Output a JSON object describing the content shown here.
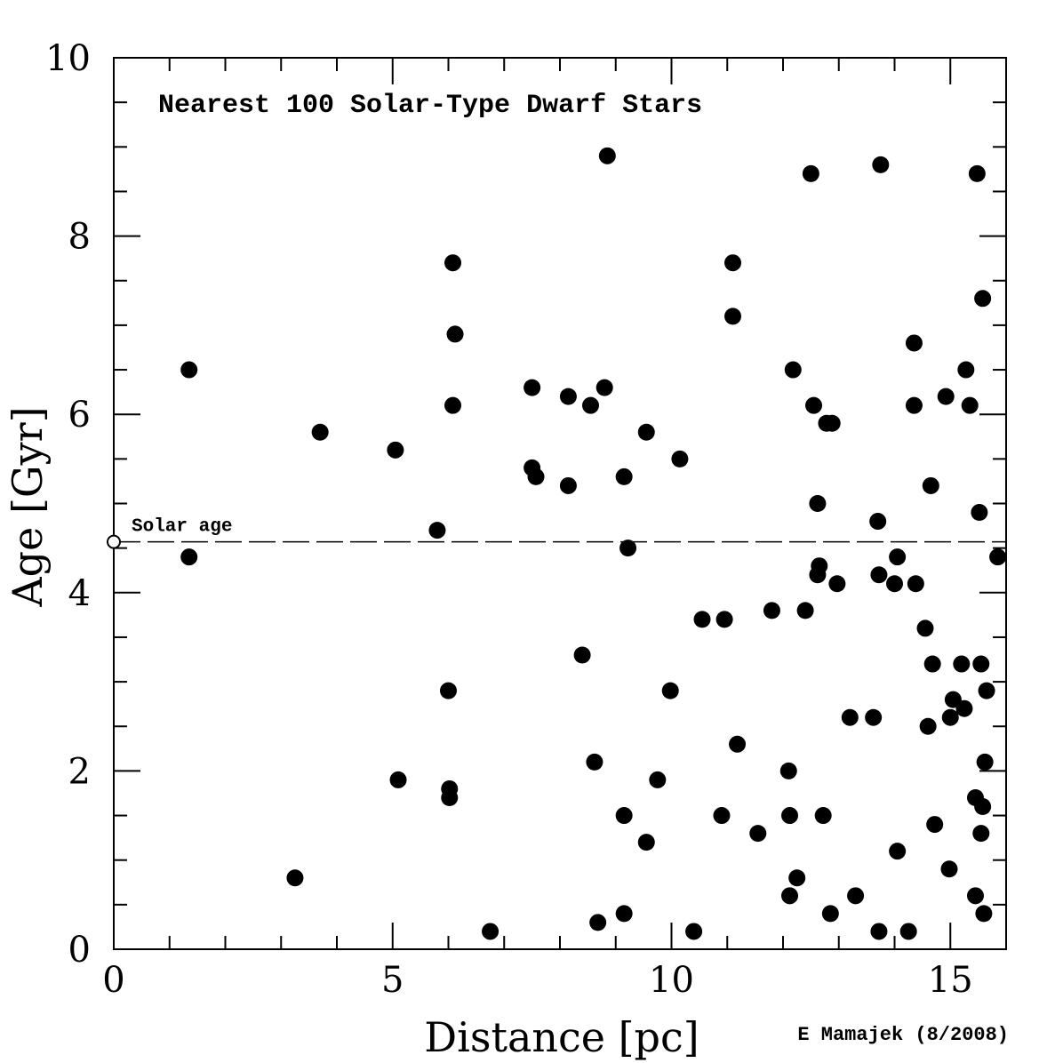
{
  "chart_data": {
    "type": "scatter",
    "title": "Nearest 100 Solar-Type Dwarf Stars",
    "xlabel": "Distance [pc]",
    "ylabel": "Age [Gyr]",
    "credit": "E Mamajek (8/2008)",
    "xlim": [
      0,
      16
    ],
    "ylim": [
      0,
      10
    ],
    "x_ticks": [
      "0",
      "5",
      "10",
      "15"
    ],
    "y_ticks": [
      "0",
      "2",
      "4",
      "6",
      "8",
      "10"
    ],
    "grid": false,
    "reference_line": {
      "label": "Solar age",
      "y": 4.57,
      "style": "dashed"
    },
    "sun": {
      "x": 0,
      "y": 4.57,
      "marker": "open-circle"
    },
    "series": [
      {
        "marker": "filled-circle",
        "color": "#000000",
        "points": [
          [
            1.35,
            6.5
          ],
          [
            1.35,
            4.4
          ],
          [
            3.25,
            0.8
          ],
          [
            3.7,
            5.8
          ],
          [
            5.05,
            5.6
          ],
          [
            5.1,
            1.9
          ],
          [
            5.8,
            4.7
          ],
          [
            6.0,
            2.9
          ],
          [
            6.02,
            1.8
          ],
          [
            6.02,
            1.7
          ],
          [
            6.08,
            7.7
          ],
          [
            6.08,
            6.1
          ],
          [
            6.12,
            6.9
          ],
          [
            6.75,
            0.2
          ],
          [
            7.5,
            6.3
          ],
          [
            7.5,
            5.4
          ],
          [
            7.57,
            5.3
          ],
          [
            8.15,
            6.2
          ],
          [
            8.15,
            5.2
          ],
          [
            8.4,
            3.3
          ],
          [
            8.55,
            6.1
          ],
          [
            8.62,
            2.1
          ],
          [
            8.68,
            0.3
          ],
          [
            8.8,
            6.3
          ],
          [
            8.85,
            8.9
          ],
          [
            9.15,
            5.3
          ],
          [
            9.15,
            1.5
          ],
          [
            9.15,
            0.4
          ],
          [
            9.22,
            4.5
          ],
          [
            9.55,
            5.8
          ],
          [
            9.55,
            1.2
          ],
          [
            9.75,
            1.9
          ],
          [
            9.98,
            2.9
          ],
          [
            10.15,
            5.5
          ],
          [
            10.4,
            0.2
          ],
          [
            10.55,
            3.7
          ],
          [
            10.9,
            1.5
          ],
          [
            10.95,
            3.7
          ],
          [
            11.1,
            7.7
          ],
          [
            11.1,
            7.1
          ],
          [
            11.18,
            2.3
          ],
          [
            11.55,
            1.3
          ],
          [
            11.8,
            3.8
          ],
          [
            12.1,
            2.0
          ],
          [
            12.12,
            1.5
          ],
          [
            12.12,
            0.6
          ],
          [
            12.18,
            6.5
          ],
          [
            12.25,
            0.8
          ],
          [
            12.4,
            3.8
          ],
          [
            12.5,
            8.7
          ],
          [
            12.55,
            6.1
          ],
          [
            12.62,
            5.0
          ],
          [
            12.62,
            4.2
          ],
          [
            12.65,
            4.3
          ],
          [
            12.72,
            1.5
          ],
          [
            12.78,
            5.9
          ],
          [
            12.85,
            0.4
          ],
          [
            12.88,
            5.9
          ],
          [
            12.97,
            4.1
          ],
          [
            13.2,
            2.6
          ],
          [
            13.3,
            0.6
          ],
          [
            13.62,
            2.6
          ],
          [
            13.7,
            4.8
          ],
          [
            13.72,
            4.2
          ],
          [
            13.72,
            0.2
          ],
          [
            13.75,
            8.8
          ],
          [
            14.0,
            4.1
          ],
          [
            14.05,
            4.4
          ],
          [
            14.05,
            1.1
          ],
          [
            14.25,
            0.2
          ],
          [
            14.35,
            6.8
          ],
          [
            14.35,
            6.1
          ],
          [
            14.38,
            4.1
          ],
          [
            14.55,
            3.6
          ],
          [
            14.6,
            2.5
          ],
          [
            14.65,
            5.2
          ],
          [
            14.68,
            3.2
          ],
          [
            14.72,
            1.4
          ],
          [
            14.92,
            6.2
          ],
          [
            14.98,
            0.9
          ],
          [
            15.0,
            2.6
          ],
          [
            15.05,
            2.8
          ],
          [
            15.2,
            3.2
          ],
          [
            15.25,
            2.7
          ],
          [
            15.28,
            6.5
          ],
          [
            15.35,
            6.1
          ],
          [
            15.45,
            1.7
          ],
          [
            15.45,
            0.6
          ],
          [
            15.48,
            8.7
          ],
          [
            15.52,
            4.9
          ],
          [
            15.55,
            3.2
          ],
          [
            15.55,
            1.3
          ],
          [
            15.58,
            7.3
          ],
          [
            15.58,
            1.6
          ],
          [
            15.6,
            0.4
          ],
          [
            15.62,
            2.1
          ],
          [
            15.65,
            2.9
          ],
          [
            15.85,
            4.4
          ]
        ]
      }
    ]
  }
}
